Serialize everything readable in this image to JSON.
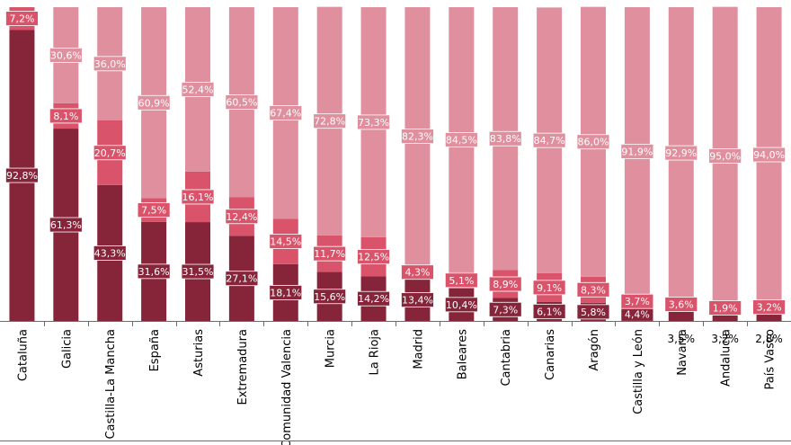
{
  "chart_data": {
    "type": "bar",
    "stacked": true,
    "title": "",
    "xlabel": "",
    "ylabel": "",
    "ylim": [
      0,
      100
    ],
    "categories": [
      "Cataluña",
      "Galicia",
      "Castilla-La Mancha",
      "España",
      "Asturias",
      "Extremadura",
      "Comunidad Valencia",
      "Murcia",
      "La Rioja",
      "Madrid",
      "Baleares",
      "Cantabria",
      "Canarias",
      "Aragón",
      "Castilla y León",
      "Navarra",
      "Andalucía",
      "País Vasco"
    ],
    "series": [
      {
        "name": "Serie 1",
        "color": "#86243a",
        "values": [
          92.8,
          61.3,
          43.3,
          31.6,
          31.5,
          27.1,
          18.1,
          15.6,
          14.2,
          13.4,
          10.4,
          7.3,
          6.1,
          5.8,
          4.4,
          3.5,
          3.2,
          2.8
        ],
        "labels": [
          "92,8%",
          "61,3%",
          "43,3%",
          "31,6%",
          "31,5%",
          "27,1%",
          "18,1%",
          "15,6%",
          "14,2%",
          "13,4%",
          "10,4%",
          "7,3%",
          "6,1%",
          "5,8%",
          "4,4%",
          "3,5%",
          "3,2%",
          "2,8%"
        ]
      },
      {
        "name": "Serie 2",
        "color": "#d9546b",
        "values": [
          7.2,
          8.1,
          20.7,
          7.5,
          16.1,
          12.4,
          14.5,
          11.7,
          12.5,
          4.3,
          5.1,
          8.9,
          9.1,
          8.3,
          3.7,
          3.6,
          1.9,
          3.2
        ],
        "labels": [
          "7,2%",
          "8,1%",
          "20,7%",
          "7,5%",
          "16,1%",
          "12,4%",
          "14,5%",
          "11,7%",
          "12,5%",
          "4,3%",
          "5,1%",
          "8,9%",
          "9,1%",
          "8,3%",
          "3,7%",
          "3,6%",
          "1,9%",
          "3,2%"
        ]
      },
      {
        "name": "Serie 3",
        "color": "#df8f9d",
        "values": [
          0,
          30.6,
          36.0,
          60.9,
          52.4,
          60.5,
          67.4,
          72.8,
          73.3,
          82.3,
          84.5,
          83.8,
          84.7,
          86.0,
          91.9,
          92.9,
          95.0,
          94.0
        ],
        "labels": [
          "",
          "30,6%",
          "36,0%",
          "60,9%",
          "52,4%",
          "60,5%",
          "67,4%",
          "72,8%",
          "73,3%",
          "82,3%",
          "84,5%",
          "83,8%",
          "84,7%",
          "86,0%",
          "91,9%",
          "92,9%",
          "95,0%",
          "94,0%"
        ]
      }
    ]
  }
}
